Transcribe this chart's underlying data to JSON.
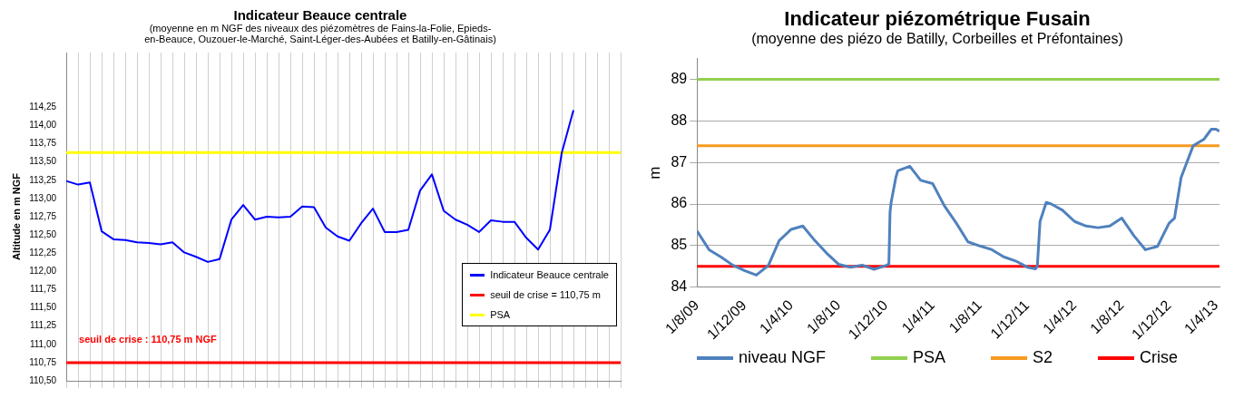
{
  "chart_data": [
    {
      "type": "line",
      "title": "Indicateur Beauce centrale",
      "subtitle": "(moyenne en m NGF des niveaux des piézomètres de Fains-la-Folie, Epieds-en-Beauce, Ouzouer-le-Marché, Saint-Léger-des-Aubées et Batilly-en-Gâtinais)",
      "ylabel": "Altitude en m NGF",
      "categories": [
        null,
        null,
        null,
        null,
        null,
        null,
        null,
        null,
        null,
        null,
        null,
        null,
        null,
        null,
        null,
        null,
        null,
        null,
        null,
        null,
        null,
        null,
        null,
        null,
        null,
        null,
        null,
        null,
        null,
        null,
        null,
        null,
        null,
        null,
        null,
        null,
        null,
        null,
        null,
        null,
        null,
        null,
        null,
        null,
        null,
        null,
        null,
        null
      ],
      "series": [
        {
          "name": "Indicateur Beauce centrale",
          "color": "#0000ff",
          "values": [
            113.24,
            113.19,
            113.22,
            112.55,
            112.44,
            112.43,
            112.4,
            112.39,
            112.37,
            112.4,
            112.26,
            112.2,
            112.13,
            112.17,
            112.71,
            112.91,
            112.71,
            112.75,
            112.74,
            112.75,
            112.89,
            112.88,
            112.6,
            112.48,
            112.42,
            112.66,
            112.86,
            112.54,
            112.54,
            112.57,
            113.11,
            113.33,
            112.83,
            112.71,
            112.64,
            112.54,
            112.7,
            112.68,
            112.68,
            112.46,
            112.3,
            112.57,
            113.62,
            114.21,
            null,
            null,
            null,
            null
          ]
        }
      ],
      "ref_lines": [
        {
          "axis": "y",
          "value": 110.75,
          "label": "seuil de crise = 110,75 m",
          "color": "#ff0000"
        },
        {
          "axis": "y",
          "value": 113.63,
          "label": "PSA",
          "color": "#ffff00"
        }
      ],
      "annotations": [
        "seuil de crise : 110,75 m NGF"
      ],
      "ylim": [
        110.5,
        115
      ],
      "yticks": [
        {
          "value": 110.5,
          "label": "110,50"
        },
        {
          "value": 110.75,
          "label": "110,75"
        },
        {
          "value": 111,
          "label": "111,00"
        },
        {
          "value": 111.25,
          "label": "111,25"
        },
        {
          "value": 111.5,
          "label": "111,50"
        },
        {
          "value": 111.75,
          "label": "111,75"
        },
        {
          "value": 112,
          "label": "112,00"
        },
        {
          "value": 112.25,
          "label": "112,25"
        },
        {
          "value": 112.5,
          "label": "112,50"
        },
        {
          "value": 112.75,
          "label": "112,75"
        },
        {
          "value": 113,
          "label": "113,00"
        },
        {
          "value": 113.25,
          "label": "113,25"
        },
        {
          "value": 113.5,
          "label": "113,50"
        },
        {
          "value": 113.75,
          "label": "113,75"
        },
        {
          "value": 114,
          "label": "114,00"
        },
        {
          "value": 114.25,
          "label": "114,25"
        }
      ],
      "grid": "x",
      "legend": "bottom right",
      "tick_labels": "y",
      "marker": "none"
    },
    {
      "type": "line",
      "title": "Indicateur piézométrique Fusain",
      "subtitle": "(moyenne des piézo de Batilly, Corbeilles et Préfontaines)",
      "ylabel": "m",
      "x": [
        "2009-08-01",
        "2009-09-01",
        "2009-10-01",
        "2009-11-01",
        "2009-12-01",
        "2010-01-01",
        "2010-02-01",
        "2010-03-01",
        "2010-04-01",
        "2010-05-01",
        "2010-06-01",
        "2010-07-01",
        "2010-08-01",
        "2010-09-01",
        "2010-10-01",
        "2010-11-01",
        "2010-12-01",
        "2010-12-09",
        "2010-12-12",
        "2010-12-15",
        "2010-12-27",
        "2011-01-01",
        "2011-02-01",
        "2011-03-01",
        "2011-04-01",
        "2011-05-01",
        "2011-06-01",
        "2011-07-01",
        "2011-08-01",
        "2011-09-01",
        "2011-10-01",
        "2011-11-01",
        "2011-12-01",
        "2011-12-22",
        "2011-12-27",
        "2012-01-03",
        "2012-01-19",
        "2012-02-01",
        "2012-03-01",
        "2012-04-01",
        "2012-05-01",
        "2012-06-01",
        "2012-07-01",
        "2012-08-01",
        "2012-09-01",
        "2012-10-01",
        "2012-11-01",
        "2012-12-01",
        "2012-12-15",
        "2013-01-01",
        "2013-02-01",
        "2013-03-01",
        "2013-03-20",
        "2013-04-01",
        "2013-04-10"
      ],
      "series": [
        {
          "name": "niveau NGF",
          "color": "#4f81bd",
          "values": [
            85.35,
            84.9,
            84.73,
            84.53,
            84.4,
            84.29,
            84.52,
            85.12,
            85.39,
            85.47,
            85.12,
            84.82,
            84.55,
            84.48,
            84.53,
            84.43,
            84.52,
            84.55,
            85.81,
            86.05,
            86.64,
            86.8,
            86.91,
            86.57,
            86.49,
            85.96,
            85.54,
            85.09,
            84.99,
            84.9,
            84.73,
            84.63,
            84.48,
            84.44,
            84.5,
            85.58,
            86.04,
            86.0,
            85.85,
            85.58,
            85.47,
            85.43,
            85.47,
            85.66,
            85.24,
            84.9,
            84.98,
            85.54,
            85.66,
            86.64,
            87.4,
            87.56,
            87.8,
            87.8,
            87.75
          ]
        }
      ],
      "ref_lines": [
        {
          "axis": "y",
          "value": 89,
          "label": "PSA",
          "color": "#92d050"
        },
        {
          "axis": "y",
          "value": 87.4,
          "label": "S2",
          "color": "#f79a1e"
        },
        {
          "axis": "y",
          "value": 84.5,
          "label": "Crise",
          "color": "#ff0000"
        }
      ],
      "xlim": [
        "2009-08-01",
        "2013-04-10"
      ],
      "xticks": [
        {
          "value": "2009-08-01",
          "label": "1/8/09"
        },
        {
          "value": "2009-12-01",
          "label": "1/12/09"
        },
        {
          "value": "2010-04-01",
          "label": "1/4/10"
        },
        {
          "value": "2010-08-01",
          "label": "1/8/10"
        },
        {
          "value": "2010-12-01",
          "label": "1/12/10"
        },
        {
          "value": "2011-04-01",
          "label": "1/4/11"
        },
        {
          "value": "2011-08-01",
          "label": "1/8/11"
        },
        {
          "value": "2011-12-01",
          "label": "1/12/11"
        },
        {
          "value": "2012-04-01",
          "label": "1/4/12"
        },
        {
          "value": "2012-08-01",
          "label": "1/8/12"
        },
        {
          "value": "2012-12-01",
          "label": "1/12/12"
        },
        {
          "value": "2013-04-01",
          "label": "1/4/13"
        }
      ],
      "ylim": [
        84,
        89.5
      ],
      "yticks": [
        84,
        85,
        86,
        87,
        88,
        89
      ],
      "grid": "y",
      "legend": "bottom",
      "marker": "none"
    }
  ]
}
